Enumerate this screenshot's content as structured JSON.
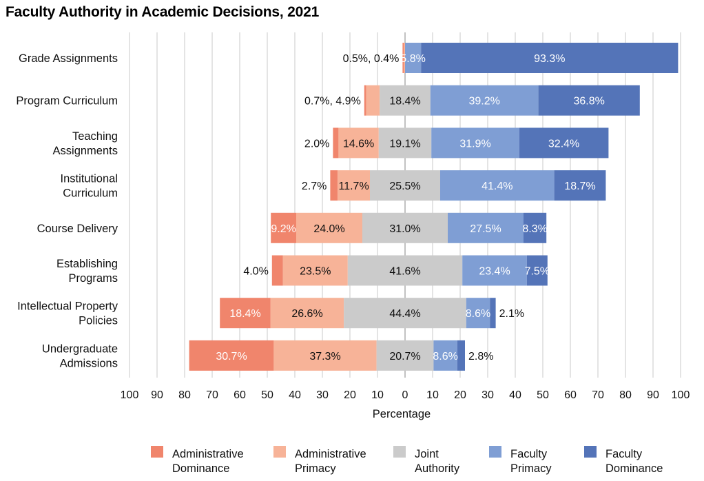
{
  "chart_data": {
    "type": "bar",
    "orientation": "horizontal",
    "stacking": "diverging",
    "title": "Faculty Authority in Academic Decisions, 2021",
    "xlabel": "Percentage",
    "ylabel": "",
    "xlim": [
      -100,
      100
    ],
    "x_ticks": [
      -100,
      -90,
      -80,
      -70,
      -60,
      -50,
      -40,
      -30,
      -20,
      -10,
      0,
      10,
      20,
      30,
      40,
      50,
      60,
      70,
      80,
      90,
      100
    ],
    "x_tick_labels": [
      "100",
      "90",
      "80",
      "70",
      "60",
      "50",
      "40",
      "30",
      "20",
      "10",
      "0",
      "10",
      "20",
      "30",
      "40",
      "50",
      "60",
      "70",
      "80",
      "90",
      "100"
    ],
    "grid": "vertical",
    "legend_position": "bottom",
    "categories": [
      [
        "Grade Assignments"
      ],
      [
        "Program Curriculum"
      ],
      [
        "Teaching",
        "Assignments"
      ],
      [
        "Institutional",
        "Curriculum"
      ],
      [
        "Course Delivery"
      ],
      [
        "Establishing",
        "Programs"
      ],
      [
        "Intellectual Property",
        "Policies"
      ],
      [
        "Undergraduate",
        "Admissions"
      ]
    ],
    "series": [
      {
        "name": [
          "Administrative",
          "Dominance"
        ],
        "color": "#f0856c",
        "side": "negative",
        "values": [
          0.5,
          0.7,
          2.0,
          2.7,
          9.2,
          4.0,
          18.4,
          30.7
        ]
      },
      {
        "name": [
          "Administrative",
          "Primacy"
        ],
        "color": "#f7b398",
        "side": "negative",
        "values": [
          0.4,
          4.9,
          14.6,
          11.7,
          24.0,
          23.5,
          26.6,
          37.3
        ]
      },
      {
        "name": [
          "Joint",
          "Authority"
        ],
        "color": "#cbcbcb",
        "side": "center",
        "values": [
          0,
          18.4,
          19.1,
          25.5,
          31.0,
          41.6,
          44.4,
          20.7
        ]
      },
      {
        "name": [
          "Faculty",
          "Primacy"
        ],
        "color": "#7f9ed4",
        "side": "positive",
        "values": [
          5.8,
          39.2,
          31.9,
          41.4,
          27.5,
          23.4,
          8.6,
          8.6
        ]
      },
      {
        "name": [
          "Faculty",
          "Dominance"
        ],
        "color": "#5474b8",
        "side": "positive",
        "values": [
          93.3,
          36.8,
          32.4,
          18.7,
          8.3,
          7.5,
          2.1,
          2.8
        ]
      }
    ],
    "data_labels": [
      [
        {
          "text": "0.5%, 0.4%",
          "series": 1,
          "place": "outside-left"
        },
        {
          "text": "5.8%",
          "series": 3
        },
        {
          "text": "93.3%",
          "series": 4
        }
      ],
      [
        {
          "text": "0.7%, 4.9%",
          "series": 1,
          "place": "outside-left"
        },
        {
          "text": "18.4%",
          "series": 2
        },
        {
          "text": "39.2%",
          "series": 3
        },
        {
          "text": "36.8%",
          "series": 4
        }
      ],
      [
        {
          "text": "2.0%",
          "series": 0,
          "place": "outside-left"
        },
        {
          "text": "14.6%",
          "series": 1
        },
        {
          "text": "19.1%",
          "series": 2
        },
        {
          "text": "31.9%",
          "series": 3
        },
        {
          "text": "32.4%",
          "series": 4
        }
      ],
      [
        {
          "text": "2.7%",
          "series": 0,
          "place": "outside-left"
        },
        {
          "text": "11.7%",
          "series": 1
        },
        {
          "text": "25.5%",
          "series": 2
        },
        {
          "text": "41.4%",
          "series": 3
        },
        {
          "text": "18.7%",
          "series": 4
        }
      ],
      [
        {
          "text": "9.2%",
          "series": 0
        },
        {
          "text": "24.0%",
          "series": 1
        },
        {
          "text": "31.0%",
          "series": 2
        },
        {
          "text": "27.5%",
          "series": 3
        },
        {
          "text": "8.3%",
          "series": 4
        }
      ],
      [
        {
          "text": "4.0%",
          "series": 0,
          "place": "outside-left"
        },
        {
          "text": "23.5%",
          "series": 1
        },
        {
          "text": "41.6%",
          "series": 2
        },
        {
          "text": "23.4%",
          "series": 3
        },
        {
          "text": "7.5%",
          "series": 4
        }
      ],
      [
        {
          "text": "18.4%",
          "series": 0
        },
        {
          "text": "26.6%",
          "series": 1
        },
        {
          "text": "44.4%",
          "series": 2
        },
        {
          "text": "8.6%",
          "series": 3
        },
        {
          "text": "2.1%",
          "series": 4,
          "place": "outside-right"
        }
      ],
      [
        {
          "text": "30.7%",
          "series": 0
        },
        {
          "text": "37.3%",
          "series": 1
        },
        {
          "text": "20.7%",
          "series": 2
        },
        {
          "text": "8.6%",
          "series": 3
        },
        {
          "text": "2.8%",
          "series": 4,
          "place": "outside-right"
        }
      ]
    ]
  }
}
